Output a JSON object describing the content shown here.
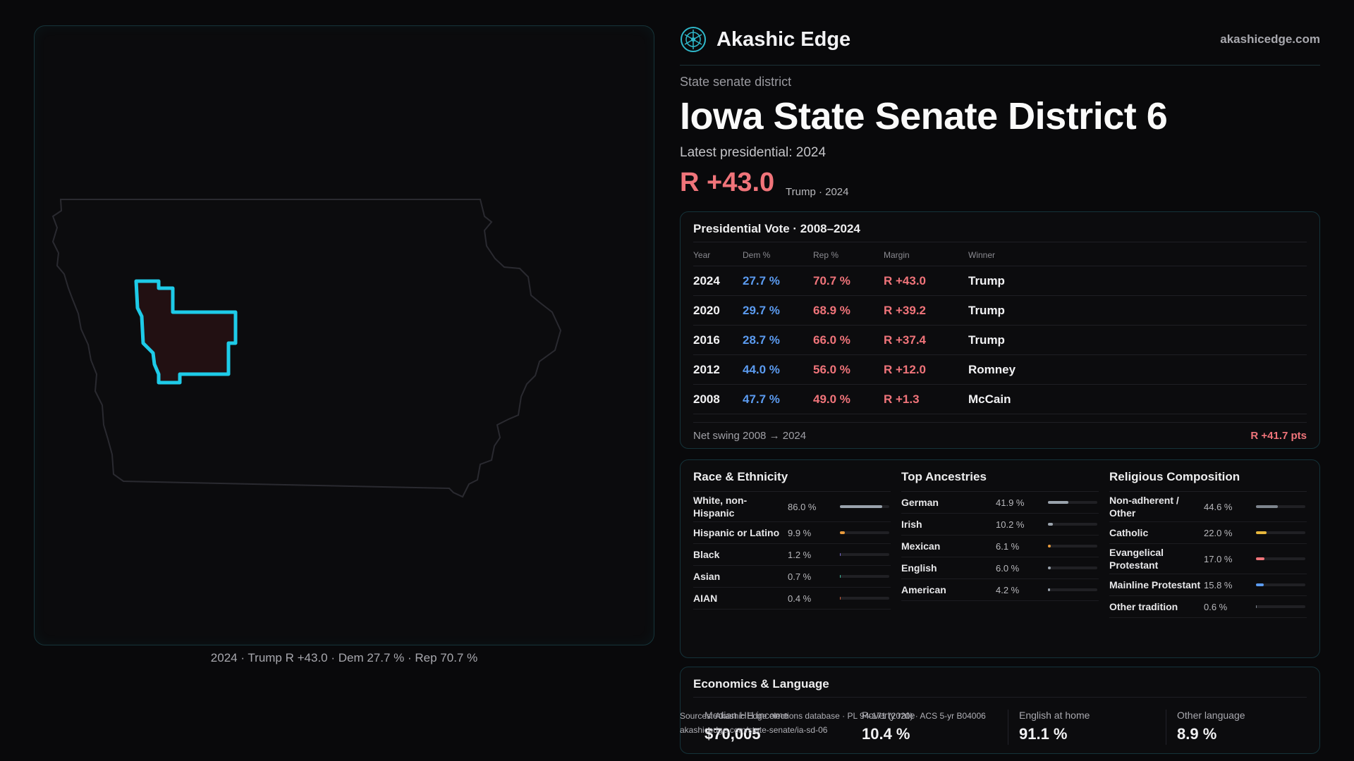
{
  "brand": {
    "name": "Akashic Edge",
    "url": "akashicedge.com",
    "logo_icon": "akashic-edge-logo-icon"
  },
  "header": {
    "eyebrow": "State senate district",
    "title": "Iowa State Senate District 6",
    "latest": "Latest presidential: 2024",
    "margin": "R +43.0",
    "margin_sub": "Trump · 2024"
  },
  "map": {
    "caption": "2024 · Trump R +43.0 · Dem 27.7 % · Rep 70.7 %",
    "district_color": "#1ecbe8",
    "district_fill": "#221012"
  },
  "presidential": {
    "title": "Presidential Vote · 2008–2024",
    "headers": {
      "year": "Year",
      "dem": "Dem %",
      "rep": "Rep %",
      "margin": "Margin",
      "winner": "Winner"
    },
    "rows": [
      {
        "year": "2024",
        "dem": "27.7 %",
        "rep": "70.7 %",
        "margin": "R +43.0",
        "winner": "Trump"
      },
      {
        "year": "2020",
        "dem": "29.7 %",
        "rep": "68.9 %",
        "margin": "R +39.2",
        "winner": "Trump"
      },
      {
        "year": "2016",
        "dem": "28.7 %",
        "rep": "66.0 %",
        "margin": "R +37.4",
        "winner": "Trump"
      },
      {
        "year": "2012",
        "dem": "44.0 %",
        "rep": "56.0 %",
        "margin": "R +12.0",
        "winner": "Romney"
      },
      {
        "year": "2008",
        "dem": "47.7 %",
        "rep": "49.0 %",
        "margin": "R +1.3",
        "winner": "McCain"
      }
    ],
    "swing_label": "Net swing 2008 → 2024",
    "swing_value": "R +41.7 pts",
    "dem_color": "#5b9bf0",
    "rep_color": "#f0747a"
  },
  "race": {
    "title": "Race & Ethnicity",
    "items": [
      {
        "label": "White, non-Hispanic",
        "pct": "86.0 %",
        "share": 0.86,
        "color": "#9aa3ad"
      },
      {
        "label": "Hispanic or Latino",
        "pct": "9.9 %",
        "share": 0.099,
        "color": "#e89a3c"
      },
      {
        "label": "Black",
        "pct": "1.2 %",
        "share": 0.012,
        "color": "#7a6ad0"
      },
      {
        "label": "Asian",
        "pct": "0.7 %",
        "share": 0.007,
        "color": "#3cc2a0"
      },
      {
        "label": "AIAN",
        "pct": "0.4 %",
        "share": 0.004,
        "color": "#d0603c"
      }
    ]
  },
  "ancestry": {
    "title": "Top Ancestries",
    "items": [
      {
        "label": "German",
        "pct": "41.9 %",
        "share": 0.419,
        "color": "#9aa3ad"
      },
      {
        "label": "Irish",
        "pct": "10.2 %",
        "share": 0.102,
        "color": "#9aa3ad"
      },
      {
        "label": "Mexican",
        "pct": "6.1 %",
        "share": 0.061,
        "color": "#e89a3c"
      },
      {
        "label": "English",
        "pct": "6.0 %",
        "share": 0.06,
        "color": "#9aa3ad"
      },
      {
        "label": "American",
        "pct": "4.2 %",
        "share": 0.042,
        "color": "#9aa3ad"
      }
    ]
  },
  "religion": {
    "title": "Religious Composition",
    "items": [
      {
        "label": "Non-adherent / Other",
        "pct": "44.6 %",
        "share": 0.446,
        "color": "#7e858e"
      },
      {
        "label": "Catholic",
        "pct": "22.0 %",
        "share": 0.22,
        "color": "#e8b73c"
      },
      {
        "label": "Evangelical Protestant",
        "pct": "17.0 %",
        "share": 0.17,
        "color": "#f0747a"
      },
      {
        "label": "Mainline Protestant",
        "pct": "15.8 %",
        "share": 0.158,
        "color": "#5b9bf0"
      },
      {
        "label": "Other tradition",
        "pct": "0.6 %",
        "share": 0.006,
        "color": "#7e858e"
      }
    ]
  },
  "economics": {
    "title": "Economics & Language",
    "metrics": [
      {
        "label": "Median HH income",
        "value": "$70,005"
      },
      {
        "label": "Poverty rate",
        "value": "10.4 %"
      },
      {
        "label": "English at home",
        "value": "91.1 %"
      },
      {
        "label": "Other language",
        "value": "8.9 %"
      }
    ]
  },
  "sources": {
    "line1": "Sources: Akashic Edge elections database · PL 94-171 (2020) · ACS 5-yr B04006",
    "line2": "akashicedge.com/state-senate/ia-sd-06"
  }
}
